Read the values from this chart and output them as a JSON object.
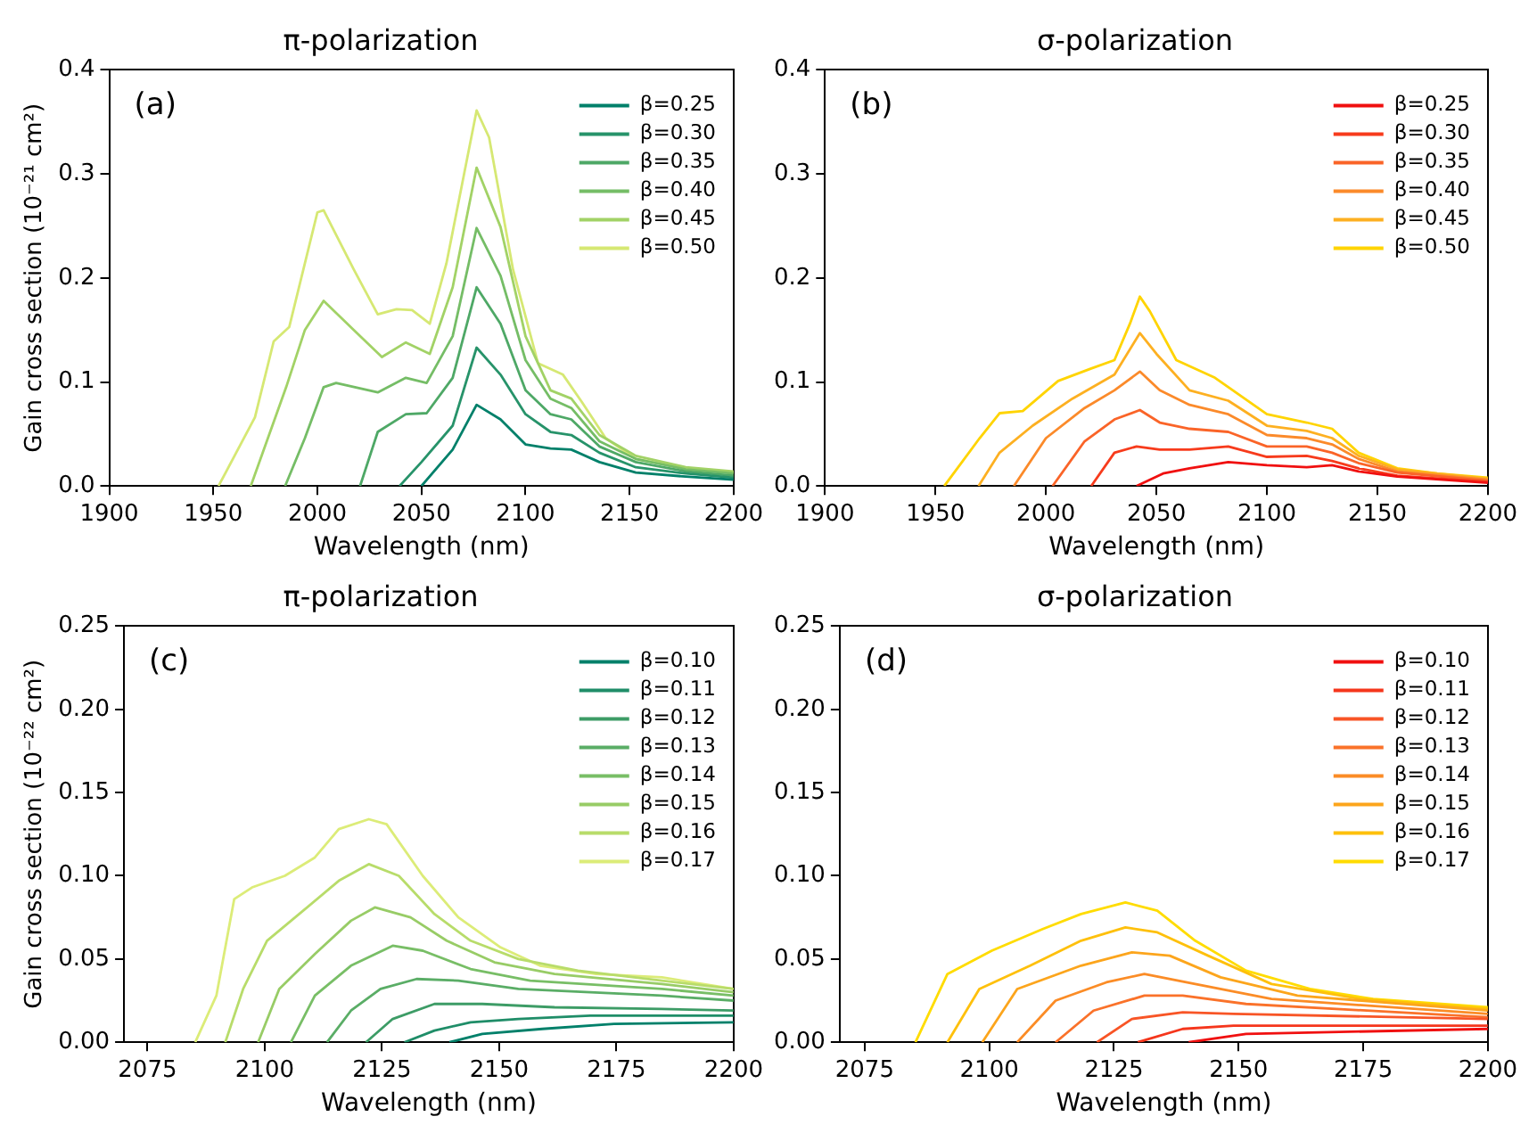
{
  "chart_data": [
    {
      "type": "line",
      "title": "π-polarization",
      "xlabel": "Wavelength (nm)",
      "ylabel": "Gain cross section (10⁻²¹ cm²)",
      "annotations": [
        "(a)"
      ],
      "xlim": [
        1900,
        2200
      ],
      "xticks": [
        1900,
        1950,
        2000,
        2050,
        2100,
        2150,
        2200
      ],
      "ylim": [
        0,
        0.4
      ],
      "yticks": [
        {
          "value": 0,
          "label": "0.0"
        },
        0.1,
        0.2,
        0.3,
        0.4
      ],
      "grid": false,
      "legend": "top right",
      "marker": "none",
      "line_style": "solid",
      "series": [
        {
          "name": "β=0.25",
          "color": "#00806a",
          "x": [
            2050,
            2065,
            2076.5,
            2088,
            2100,
            2112,
            2122,
            2135.5,
            2153,
            2177,
            2200
          ],
          "values": [
            0,
            0.035,
            0.078,
            0.064,
            0.04,
            0.036,
            0.035,
            0.023,
            0.013,
            0.009,
            0.006
          ]
        },
        {
          "name": "β=0.30",
          "color": "#27936a",
          "x": [
            2039.5,
            2050,
            2065,
            2076.5,
            2088,
            2100,
            2112,
            2122,
            2135.5,
            2153,
            2177,
            2200
          ],
          "values": [
            0,
            0.023,
            0.058,
            0.133,
            0.107,
            0.069,
            0.052,
            0.049,
            0.032,
            0.018,
            0.012,
            0.008
          ]
        },
        {
          "name": "β=0.35",
          "color": "#4ea866",
          "x": [
            2020.5,
            2029,
            2042.5,
            2052.5,
            2065,
            2076.5,
            2088,
            2100,
            2112,
            2122,
            2135.5,
            2153,
            2177,
            2200
          ],
          "values": [
            0,
            0.052,
            0.069,
            0.07,
            0.104,
            0.191,
            0.156,
            0.092,
            0.069,
            0.064,
            0.038,
            0.023,
            0.014,
            0.01
          ]
        },
        {
          "name": "β=0.40",
          "color": "#75bd66",
          "x": [
            1984.5,
            1994,
            2003,
            2009,
            2029,
            2042.5,
            2052.5,
            2065,
            2076.5,
            2088,
            2100,
            2112,
            2122,
            2135.5,
            2153,
            2177,
            2200
          ],
          "values": [
            0,
            0.046,
            0.095,
            0.099,
            0.09,
            0.104,
            0.099,
            0.144,
            0.248,
            0.202,
            0.121,
            0.084,
            0.075,
            0.043,
            0.026,
            0.016,
            0.012
          ]
        },
        {
          "name": "β=0.45",
          "color": "#a2d266",
          "x": [
            1968,
            1985,
            1994,
            2003,
            2017.5,
            2031,
            2042.5,
            2054,
            2065,
            2076.5,
            2088,
            2100,
            2112,
            2122,
            2135.5,
            2153,
            2177,
            2200
          ],
          "values": [
            0,
            0.095,
            0.15,
            0.178,
            0.15,
            0.124,
            0.138,
            0.127,
            0.191,
            0.306,
            0.249,
            0.144,
            0.092,
            0.084,
            0.049,
            0.029,
            0.018,
            0.014
          ]
        },
        {
          "name": "β=0.50",
          "color": "#d6e873",
          "x": [
            1952.5,
            1970,
            1979,
            1986.5,
            2000,
            2003,
            2017.5,
            2029,
            2038,
            2045.5,
            2054,
            2062,
            2070.5,
            2076.5,
            2082.5,
            2094,
            2106,
            2118,
            2127,
            2138.5,
            2153,
            2177,
            2200
          ],
          "values": [
            0,
            0.066,
            0.139,
            0.153,
            0.263,
            0.265,
            0.208,
            0.165,
            0.17,
            0.169,
            0.156,
            0.214,
            0.3,
            0.361,
            0.335,
            0.208,
            0.118,
            0.107,
            0.081,
            0.046,
            0.026,
            0.017,
            0.013
          ]
        }
      ]
    },
    {
      "type": "line",
      "title": "σ-polarization",
      "xlabel": "Wavelength (nm)",
      "annotations": [
        "(b)"
      ],
      "xlim": [
        1900,
        2200
      ],
      "xticks": [
        1900,
        1950,
        2000,
        2050,
        2100,
        2150,
        2200
      ],
      "ylim": [
        0,
        0.4
      ],
      "yticks": [
        {
          "value": 0,
          "label": "0.0"
        },
        0.1,
        0.2,
        0.3,
        0.4
      ],
      "grid": false,
      "legend": "top right",
      "marker": "none",
      "line_style": "solid",
      "series": [
        {
          "name": "β=0.25",
          "color": "#f01010",
          "x": [
            2041,
            2053,
            2065,
            2082.5,
            2100,
            2118,
            2129.5,
            2141.5,
            2159,
            2200
          ],
          "values": [
            0,
            0.012,
            0.017,
            0.023,
            0.02,
            0.018,
            0.02,
            0.014,
            0.009,
            0.003
          ]
        },
        {
          "name": "β=0.30",
          "color": "#f73b1c",
          "x": [
            2020.5,
            2031,
            2041,
            2051.5,
            2065,
            2082.5,
            2100,
            2118,
            2129.5,
            2141.5,
            2159,
            2200
          ],
          "values": [
            0,
            0.032,
            0.038,
            0.035,
            0.035,
            0.038,
            0.028,
            0.029,
            0.024,
            0.017,
            0.01,
            0.004
          ]
        },
        {
          "name": "β=0.35",
          "color": "#fa6428",
          "x": [
            2003,
            2017.5,
            2031,
            2042.5,
            2051.5,
            2065,
            2082.5,
            2100,
            2118,
            2129.5,
            2141.5,
            2159,
            2200
          ],
          "values": [
            0,
            0.043,
            0.064,
            0.073,
            0.061,
            0.055,
            0.052,
            0.038,
            0.038,
            0.032,
            0.022,
            0.013,
            0.005
          ]
        },
        {
          "name": "β=0.40",
          "color": "#fb8a2a",
          "x": [
            1985.5,
            2000,
            2017.5,
            2031,
            2042.5,
            2051.5,
            2065,
            2082.5,
            2100,
            2118,
            2129.5,
            2141.5,
            2159,
            2200
          ],
          "values": [
            0,
            0.046,
            0.075,
            0.092,
            0.11,
            0.092,
            0.078,
            0.069,
            0.049,
            0.046,
            0.04,
            0.026,
            0.014,
            0.006
          ]
        },
        {
          "name": "β=0.45",
          "color": "#fdb021",
          "x": [
            1969.5,
            1979,
            1994,
            2012,
            2031,
            2042.5,
            2050,
            2065,
            2082.5,
            2100,
            2118,
            2129.5,
            2141.5,
            2159,
            2200
          ],
          "values": [
            0,
            0.032,
            0.058,
            0.084,
            0.107,
            0.147,
            0.127,
            0.092,
            0.082,
            0.058,
            0.053,
            0.046,
            0.029,
            0.016,
            0.007
          ]
        },
        {
          "name": "β=0.50",
          "color": "#ffd400",
          "x": [
            1954,
            1970,
            1979,
            1989.5,
            2005.5,
            2020.5,
            2031,
            2038,
            2042.5,
            2047,
            2059,
            2076.5,
            2100,
            2118,
            2129.5,
            2141.5,
            2159,
            2177,
            2200
          ],
          "values": [
            0,
            0.046,
            0.07,
            0.072,
            0.101,
            0.113,
            0.121,
            0.156,
            0.182,
            0.168,
            0.121,
            0.104,
            0.069,
            0.061,
            0.055,
            0.032,
            0.017,
            0.012,
            0.008
          ]
        }
      ]
    },
    {
      "type": "line",
      "title": "π-polarization",
      "xlabel": "Wavelength (nm)",
      "ylabel": "Gain cross section (10⁻²² cm²)",
      "annotations": [
        "(c)"
      ],
      "xlim": [
        2070,
        2200
      ],
      "xticks": [
        2075,
        2100,
        2125,
        2150,
        2175,
        2200
      ],
      "ylim": [
        0,
        0.25
      ],
      "yticks": [
        {
          "value": 0,
          "label": "0.00"
        },
        {
          "value": 0.05,
          "label": "0.05"
        },
        {
          "value": 0.1,
          "label": "0.10"
        },
        {
          "value": 0.15,
          "label": "0.15"
        },
        {
          "value": 0.2,
          "label": "0.20"
        },
        {
          "value": 0.25,
          "label": "0.25"
        }
      ],
      "grid": false,
      "legend": "top right",
      "marker": "none",
      "line_style": "solid",
      "series": [
        {
          "name": "β=0.10",
          "color": "#00806a",
          "x": [
            2139.4,
            2146.4,
            2159.2,
            2174.5,
            2200
          ],
          "values": [
            0,
            0.005,
            0.008,
            0.011,
            0.012
          ]
        },
        {
          "name": "β=0.11",
          "color": "#1f8d68",
          "x": [
            2129.8,
            2136.2,
            2143.9,
            2154.1,
            2169.4,
            2200
          ],
          "values": [
            0,
            0.007,
            0.012,
            0.014,
            0.016,
            0.016
          ]
        },
        {
          "name": "β=0.12",
          "color": "#3d9c66",
          "x": [
            2121.6,
            2127.3,
            2136.2,
            2146.4,
            2161.8,
            2184.7,
            2200
          ],
          "values": [
            0,
            0.014,
            0.023,
            0.023,
            0.021,
            0.02,
            0.019
          ]
        },
        {
          "name": "β=0.13",
          "color": "#5aad66",
          "x": [
            2113.3,
            2118.4,
            2124.7,
            2132.4,
            2141.3,
            2154.1,
            2184.7,
            2200
          ],
          "values": [
            0,
            0.019,
            0.032,
            0.038,
            0.037,
            0.032,
            0.028,
            0.025
          ]
        },
        {
          "name": "β=0.14",
          "color": "#78be66",
          "x": [
            2105.6,
            2110.7,
            2118.4,
            2127.3,
            2133.7,
            2143.9,
            2156.6,
            2184.7,
            2200
          ],
          "values": [
            0,
            0.028,
            0.046,
            0.058,
            0.055,
            0.044,
            0.037,
            0.032,
            0.028
          ]
        },
        {
          "name": "β=0.15",
          "color": "#98cc66",
          "x": [
            2098.6,
            2103.1,
            2110.7,
            2118.4,
            2123.5,
            2131.1,
            2138.8,
            2149,
            2161.8,
            2184.7,
            2200
          ],
          "values": [
            0,
            0.032,
            0.053,
            0.073,
            0.081,
            0.075,
            0.061,
            0.048,
            0.041,
            0.035,
            0.03
          ]
        },
        {
          "name": "β=0.16",
          "color": "#b8dc6a",
          "x": [
            2091.6,
            2095.4,
            2100.5,
            2108.2,
            2115.8,
            2122.2,
            2128.6,
            2136.2,
            2143.9,
            2154.1,
            2166.8,
            2184.7,
            2200
          ],
          "values": [
            0,
            0.032,
            0.061,
            0.079,
            0.097,
            0.107,
            0.1,
            0.077,
            0.061,
            0.05,
            0.043,
            0.037,
            0.032
          ]
        },
        {
          "name": "β=0.17",
          "color": "#dcec78",
          "x": [
            2085.2,
            2089.7,
            2093.5,
            2097.3,
            2104.3,
            2110.7,
            2115.8,
            2122.2,
            2126,
            2133.7,
            2141.3,
            2150.3,
            2158.7,
            2170.7,
            2184.7,
            2200
          ],
          "values": [
            0,
            0.028,
            0.086,
            0.093,
            0.1,
            0.111,
            0.128,
            0.134,
            0.131,
            0.1,
            0.075,
            0.057,
            0.046,
            0.041,
            0.039,
            0.032
          ]
        }
      ]
    },
    {
      "type": "line",
      "title": "σ-polarization",
      "xlabel": "Wavelength (nm)",
      "annotations": [
        "(d)"
      ],
      "xlim": [
        2070,
        2200
      ],
      "xticks": [
        2075,
        2100,
        2125,
        2150,
        2175,
        2200
      ],
      "ylim": [
        0,
        0.25
      ],
      "yticks": [
        {
          "value": 0,
          "label": "0.00"
        },
        {
          "value": 0.05,
          "label": "0.05"
        },
        {
          "value": 0.1,
          "label": "0.10"
        },
        {
          "value": 0.15,
          "label": "0.15"
        },
        {
          "value": 0.2,
          "label": "0.20"
        },
        {
          "value": 0.25,
          "label": "0.25"
        }
      ],
      "grid": false,
      "legend": "top right",
      "marker": "none",
      "line_style": "solid",
      "series": [
        {
          "name": "β=0.10",
          "color": "#f01010",
          "x": [
            2140,
            2151.5,
            2200
          ],
          "values": [
            0,
            0.005,
            0.008
          ]
        },
        {
          "name": "β=0.11",
          "color": "#f5361c",
          "x": [
            2129.8,
            2138.8,
            2149,
            2200
          ],
          "values": [
            0,
            0.008,
            0.01,
            0.01
          ]
        },
        {
          "name": "β=0.12",
          "color": "#f85526",
          "x": [
            2121.6,
            2128.6,
            2138.8,
            2149,
            2200
          ],
          "values": [
            0,
            0.014,
            0.018,
            0.017,
            0.014
          ]
        },
        {
          "name": "β=0.13",
          "color": "#fa722a",
          "x": [
            2113.3,
            2120.9,
            2131.1,
            2138.8,
            2151.5,
            2200
          ],
          "values": [
            0,
            0.019,
            0.028,
            0.028,
            0.023,
            0.015
          ]
        },
        {
          "name": "β=0.14",
          "color": "#fb8c26",
          "x": [
            2105.6,
            2113.3,
            2123.5,
            2131.1,
            2141.3,
            2156.6,
            2200
          ],
          "values": [
            0,
            0.025,
            0.036,
            0.041,
            0.035,
            0.026,
            0.017
          ]
        },
        {
          "name": "β=0.15",
          "color": "#fca51c",
          "x": [
            2098.6,
            2105.6,
            2118.4,
            2128.6,
            2136.2,
            2146.4,
            2161.8,
            2200
          ],
          "values": [
            0,
            0.032,
            0.046,
            0.054,
            0.052,
            0.039,
            0.028,
            0.019
          ]
        },
        {
          "name": "β=0.16",
          "color": "#fec00c",
          "x": [
            2091.6,
            2098,
            2108.2,
            2118.4,
            2127.3,
            2133.7,
            2143.9,
            2156.6,
            2174.5,
            2200
          ],
          "values": [
            0,
            0.032,
            0.046,
            0.061,
            0.069,
            0.066,
            0.052,
            0.035,
            0.026,
            0.02
          ]
        },
        {
          "name": "β=0.17",
          "color": "#ffdc00",
          "x": [
            2085.2,
            2091.6,
            2100.5,
            2110.7,
            2118.4,
            2127.3,
            2133.7,
            2141.3,
            2151.5,
            2164.3,
            2177,
            2200
          ],
          "values": [
            0,
            0.041,
            0.055,
            0.068,
            0.077,
            0.084,
            0.079,
            0.061,
            0.043,
            0.032,
            0.026,
            0.021
          ]
        }
      ]
    }
  ]
}
